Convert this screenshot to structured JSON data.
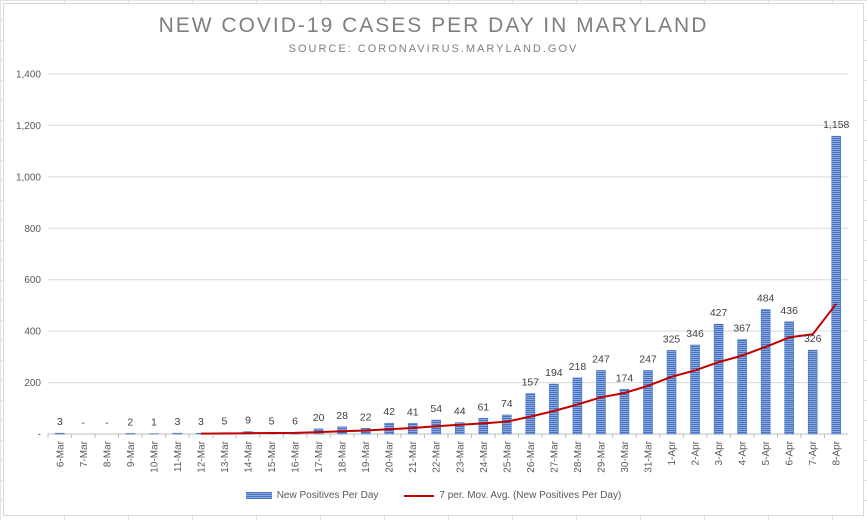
{
  "chart_data": {
    "type": "bar",
    "title": "NEW COVID-19 CASES PER DAY IN MARYLAND",
    "subtitle": "SOURCE: CORONAVIRUS.MARYLAND.GOV",
    "categories": [
      "6-Mar",
      "7-Mar",
      "8-Mar",
      "9-Mar",
      "10-Mar",
      "11-Mar",
      "12-Mar",
      "13-Mar",
      "14-Mar",
      "15-Mar",
      "16-Mar",
      "17-Mar",
      "18-Mar",
      "19-Mar",
      "20-Mar",
      "21-Mar",
      "22-Mar",
      "23-Mar",
      "24-Mar",
      "25-Mar",
      "26-Mar",
      "27-Mar",
      "28-Mar",
      "29-Mar",
      "30-Mar",
      "31-Mar",
      "1-Apr",
      "2-Apr",
      "3-Apr",
      "4-Apr",
      "5-Apr",
      "6-Apr",
      "7-Apr",
      "8-Apr"
    ],
    "series": [
      {
        "name": "New Positives Per Day",
        "type": "bar",
        "color": "#4472c4",
        "values": [
          3,
          0,
          0,
          2,
          1,
          3,
          3,
          5,
          9,
          5,
          6,
          20,
          28,
          22,
          42,
          41,
          54,
          44,
          61,
          74,
          157,
          194,
          218,
          247,
          174,
          247,
          325,
          346,
          427,
          367,
          484,
          436,
          326,
          1158
        ],
        "labels": [
          "3",
          "-",
          "-",
          "2",
          "1",
          "3",
          "3",
          "5",
          "9",
          "5",
          "6",
          "20",
          "28",
          "22",
          "42",
          "41",
          "54",
          "44",
          "61",
          "74",
          "157",
          "194",
          "218",
          "247",
          "174",
          "247",
          "325",
          "346",
          "427",
          "367",
          "484",
          "436",
          "326",
          "1,158"
        ]
      },
      {
        "name": "7 per. Mov. Avg. (New Positives Per Day)",
        "type": "line",
        "color": "#c00000",
        "values": [
          null,
          null,
          null,
          null,
          null,
          null,
          1.71,
          2.0,
          3.29,
          4.0,
          4.43,
          7.29,
          10.86,
          13.57,
          18.86,
          23.43,
          30.43,
          36.14,
          41.14,
          48.29,
          67.57,
          89.29,
          114.57,
          142.71,
          159.29,
          187.29,
          222.29,
          247.29,
          279.71,
          304.86,
          338.57,
          375.71,
          387.57,
          506.29
        ]
      }
    ],
    "ylim": [
      0,
      1400
    ],
    "yticks": [
      0,
      200,
      400,
      600,
      800,
      1000,
      1200,
      1400
    ],
    "ytick_labels": [
      "-",
      "200",
      "400",
      "600",
      "800",
      "1,000",
      "1,200",
      "1,400"
    ],
    "grid": true,
    "legend_position": "bottom"
  }
}
